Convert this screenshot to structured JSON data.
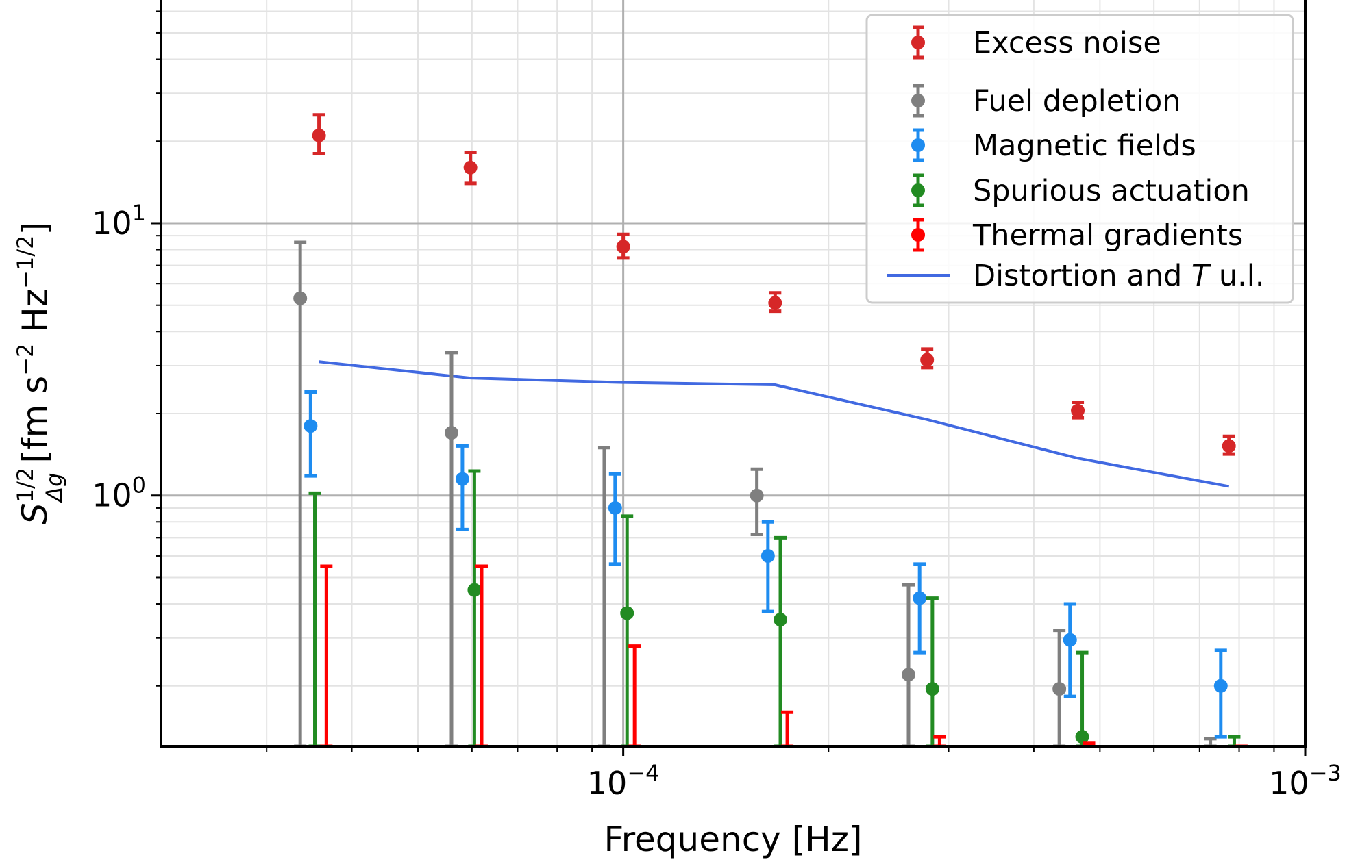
{
  "chart_data": {
    "type": "scatter",
    "xscale": "log",
    "yscale": "log",
    "xlim": [
      2.1e-05,
      0.001
    ],
    "ylim": [
      0.12,
      66
    ],
    "grid": true,
    "xlabel": "Frequency [Hz]",
    "ylabel": {
      "symbol": "S",
      "subscript": "Δg",
      "superscript": "1/2",
      "units_prefix": "[fm s",
      "exp1": "−2",
      "units_mid": " Hz",
      "exp2": "−1/2",
      "units_suffix": "]"
    },
    "x_ticks": [
      {
        "value": 0.0001,
        "base": "10",
        "exponent": "−4"
      },
      {
        "value": 0.001,
        "base": "10",
        "exponent": "−3"
      }
    ],
    "y_ticks": [
      {
        "value": 1,
        "base": "10",
        "exponent": "0"
      },
      {
        "value": 10,
        "base": "10",
        "exponent": "1"
      }
    ],
    "series": [
      {
        "name": "Excess noise",
        "color": "#d62728",
        "marker": true,
        "x": [
          3.58e-05,
          5.97e-05,
          0.0001,
          0.000167,
          0.000279,
          0.000464,
          0.000773
        ],
        "y": [
          21.0,
          16.0,
          8.2,
          5.1,
          3.15,
          2.05,
          1.52
        ],
        "err_low": [
          18.0,
          14.0,
          7.45,
          4.75,
          2.95,
          1.93,
          1.42
        ],
        "err_high": [
          25.0,
          18.2,
          9.1,
          5.55,
          3.45,
          2.2,
          1.65
        ]
      },
      {
        "name": "Fuel depletion",
        "color": "#7f7f7f",
        "marker": true,
        "x": [
          3.36e-05,
          5.6e-05,
          9.38e-05,
          0.000157,
          0.000262,
          0.000436,
          0.000726
        ],
        "y": [
          5.3,
          1.7,
          null,
          1.0,
          0.22,
          0.195,
          null
        ],
        "err_low": [
          0.12,
          0.12,
          0.12,
          0.72,
          0.12,
          0.12,
          0.12
        ],
        "err_high": [
          8.5,
          3.35,
          1.5,
          1.25,
          0.47,
          0.32,
          0.128
        ]
      },
      {
        "name": "Magnetic fields",
        "color": "#1e8cf0",
        "marker": true,
        "x": [
          3.48e-05,
          5.81e-05,
          9.73e-05,
          0.000163,
          0.000272,
          0.000452,
          0.000752
        ],
        "y": [
          1.8,
          1.15,
          0.9,
          0.6,
          0.42,
          0.295,
          0.2
        ],
        "err_low": [
          1.18,
          0.75,
          0.56,
          0.375,
          0.265,
          0.183,
          0.13
        ],
        "err_high": [
          2.4,
          1.52,
          1.2,
          0.8,
          0.56,
          0.4,
          0.27
        ]
      },
      {
        "name": "Spurious actuation",
        "color": "#228b22",
        "marker": true,
        "x": [
          3.53e-05,
          6.05e-05,
          0.0001013,
          0.00017,
          0.000284,
          0.000471,
          0.000787
        ],
        "y": [
          null,
          0.45,
          0.37,
          0.35,
          0.195,
          0.13,
          null
        ],
        "err_low": [
          0.12,
          0.12,
          0.12,
          0.12,
          0.12,
          0.12,
          0.12
        ],
        "err_high": [
          1.02,
          1.23,
          0.84,
          0.7,
          0.42,
          0.265,
          0.13
        ]
      },
      {
        "name": "Thermal gradients",
        "color": "#ff0000",
        "marker": false,
        "x": [
          3.67e-05,
          6.2e-05,
          0.0001039,
          0.000174,
          0.000291,
          0.000482,
          0.000806
        ],
        "y": [
          null,
          null,
          null,
          null,
          null,
          null,
          null
        ],
        "err_low": [
          0.12,
          0.12,
          0.12,
          0.12,
          0.12,
          0.12,
          0.12
        ],
        "err_high": [
          0.55,
          0.55,
          0.28,
          0.16,
          0.13,
          0.123,
          0.12
        ]
      }
    ],
    "line_series": {
      "name": "Distortion and T u.l.",
      "name_prefix": "Distortion and ",
      "name_italic": "T",
      "name_suffix": " u.l.",
      "color": "#4169e1",
      "x": [
        3.58e-05,
        5.97e-05,
        0.0001,
        0.000167,
        0.000279,
        0.000464,
        0.000773
      ],
      "y": [
        3.1,
        2.7,
        2.6,
        2.55,
        1.9,
        1.37,
        1.08
      ]
    },
    "legend": {
      "placement": "top-right",
      "entries": [
        {
          "label": "Excess noise",
          "kind": "errorbar",
          "color": "#d62728",
          "marker": true
        },
        {
          "label": "Fuel depletion",
          "kind": "errorbar",
          "color": "#7f7f7f",
          "marker": true
        },
        {
          "label": "Magnetic fields",
          "kind": "errorbar",
          "color": "#1e8cf0",
          "marker": true
        },
        {
          "label": "Spurious actuation",
          "kind": "errorbar",
          "color": "#228b22",
          "marker": true
        },
        {
          "label": "Thermal gradients",
          "kind": "errorbar",
          "color": "#ff0000",
          "marker": true
        },
        {
          "label": "Distortion and T u.l.",
          "kind": "line",
          "color": "#4169e1"
        }
      ]
    }
  }
}
